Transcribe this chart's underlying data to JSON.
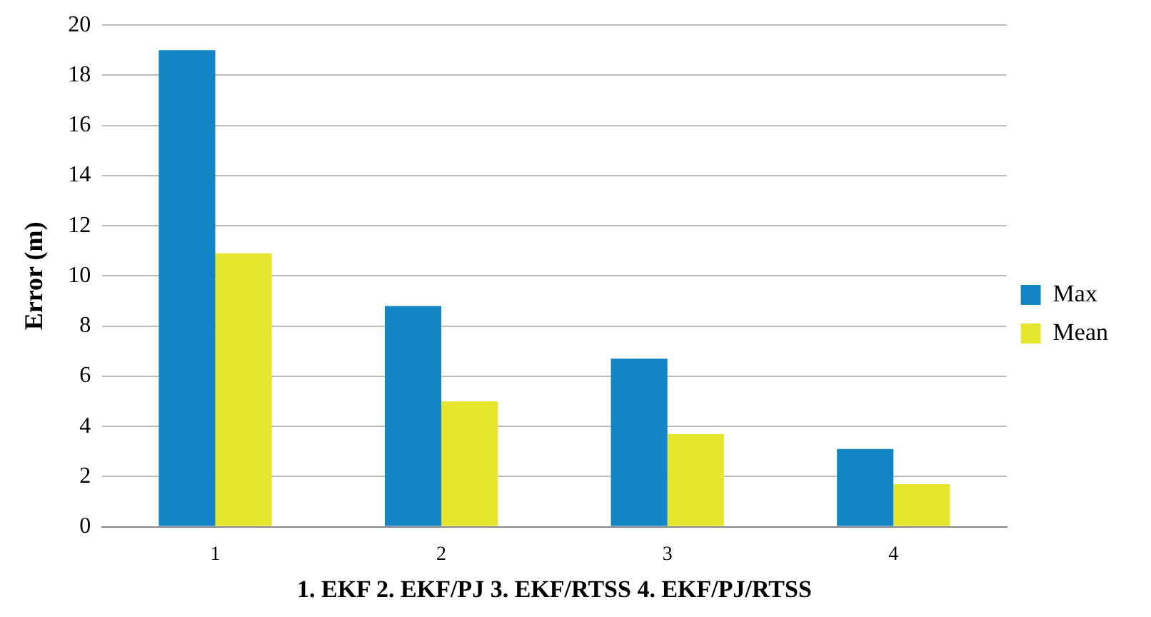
{
  "chart_data": {
    "type": "bar",
    "xlabel": "1. EKF 2. EKF/PJ 3. EKF/RTSS 4. EKF/PJ/RTSS",
    "ylabel": "Error (m)",
    "categories": [
      "1",
      "2",
      "3",
      "4"
    ],
    "series": [
      {
        "name": "Max",
        "color": "#1385c4",
        "values": [
          19,
          8.8,
          6.7,
          3.1
        ]
      },
      {
        "name": "Mean",
        "color": "#e6e62e",
        "values": [
          10.9,
          5.0,
          3.7,
          1.7
        ]
      }
    ],
    "ylim": [
      0,
      20
    ],
    "yticks": [
      0,
      2,
      4,
      6,
      8,
      10,
      12,
      14,
      16,
      18,
      20
    ],
    "grid": "y",
    "legend": "right"
  }
}
